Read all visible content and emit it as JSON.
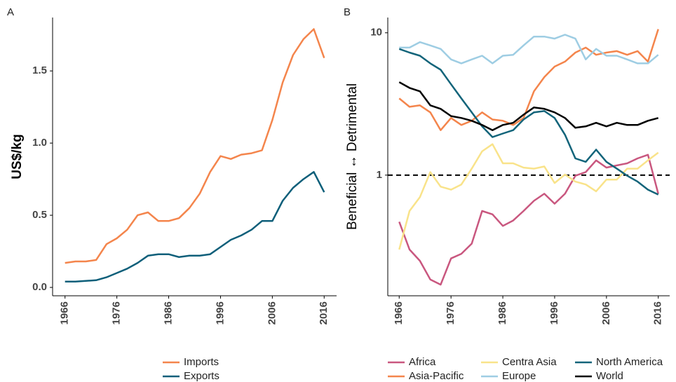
{
  "chart_data": [
    {
      "type": "line",
      "label": "A",
      "y_label": "US$/kg",
      "x": [
        1966,
        1968,
        1970,
        1972,
        1974,
        1976,
        1978,
        1980,
        1982,
        1984,
        1986,
        1988,
        1990,
        1992,
        1994,
        1996,
        1998,
        2000,
        2002,
        2004,
        2006,
        2008,
        2010,
        2012,
        2014,
        2016
      ],
      "series": [
        {
          "name": "Imports",
          "color": "#f4854c",
          "values": [
            0.17,
            0.18,
            0.18,
            0.19,
            0.3,
            0.34,
            0.4,
            0.5,
            0.52,
            0.46,
            0.46,
            0.48,
            0.55,
            0.65,
            0.8,
            0.91,
            0.89,
            0.92,
            0.93,
            0.95,
            1.16,
            1.42,
            1.61,
            1.72,
            1.79,
            1.59
          ]
        },
        {
          "name": "Exports",
          "color": "#0e5f7a",
          "values": [
            0.04,
            0.04,
            0.045,
            0.05,
            0.07,
            0.1,
            0.13,
            0.17,
            0.22,
            0.23,
            0.23,
            0.21,
            0.22,
            0.22,
            0.23,
            0.28,
            0.33,
            0.36,
            0.4,
            0.46,
            0.46,
            0.6,
            0.69,
            0.75,
            0.8,
            0.66
          ]
        }
      ],
      "xlim": [
        1963.6,
        2018.4
      ],
      "xticks": [
        1966,
        1976,
        1986,
        1996,
        2006,
        2016
      ],
      "ylim": [
        -0.058,
        1.87
      ],
      "yticks": [
        {
          "value": 0,
          "label": "0.0"
        },
        0.5,
        {
          "value": 1,
          "label": "1.0"
        },
        1.5
      ]
    },
    {
      "type": "line",
      "label": "B",
      "y_label": "Beneficial ↔ Detrimental",
      "log_y": true,
      "hline": 1,
      "x": [
        1966,
        1968,
        1970,
        1972,
        1974,
        1976,
        1978,
        1980,
        1982,
        1984,
        1986,
        1988,
        1990,
        1992,
        1994,
        1996,
        1998,
        2000,
        2002,
        2004,
        2006,
        2008,
        2010,
        2012,
        2014,
        2016
      ],
      "series": [
        {
          "name": "Africa",
          "color": "#c9577f",
          "values": [
            0.47,
            0.3,
            0.25,
            0.185,
            0.17,
            0.26,
            0.28,
            0.33,
            0.56,
            0.53,
            0.44,
            0.48,
            0.56,
            0.66,
            0.74,
            0.63,
            0.74,
            0.99,
            1.05,
            1.27,
            1.13,
            1.17,
            1.21,
            1.31,
            1.39,
            0.74
          ]
        },
        {
          "name": "Asia-Pacific",
          "color": "#f4854c",
          "values": [
            3.46,
            3.02,
            3.09,
            2.76,
            2.07,
            2.52,
            2.25,
            2.41,
            2.76,
            2.46,
            2.41,
            2.25,
            2.52,
            3.88,
            4.88,
            5.79,
            6.27,
            7.26,
            7.87,
            7.0,
            7.26,
            7.44,
            7.0,
            7.44,
            6.27,
            10.6
          ]
        },
        {
          "name": "Centra Asia",
          "color": "#f9e38a",
          "values": [
            0.3,
            0.56,
            0.7,
            1.05,
            0.83,
            0.79,
            0.86,
            1.11,
            1.47,
            1.65,
            1.21,
            1.21,
            1.13,
            1.11,
            1.15,
            0.88,
            1.01,
            0.9,
            0.86,
            0.77,
            0.93,
            0.93,
            1.11,
            1.11,
            1.27,
            1.44
          ]
        },
        {
          "name": "Europe",
          "color": "#9ecde3",
          "values": [
            7.87,
            7.87,
            8.6,
            8.15,
            7.7,
            6.5,
            6.1,
            6.5,
            6.9,
            6.1,
            6.9,
            7.0,
            8.15,
            9.4,
            9.4,
            9.1,
            9.7,
            9.1,
            6.5,
            7.7,
            6.9,
            6.9,
            6.5,
            6.1,
            6.1,
            7.0
          ]
        },
        {
          "name": "North America",
          "color": "#12647a",
          "values": [
            7.7,
            7.26,
            6.9,
            6.1,
            5.5,
            4.35,
            3.46,
            2.76,
            2.2,
            1.85,
            1.96,
            2.07,
            2.46,
            2.76,
            2.82,
            2.52,
            1.92,
            1.31,
            1.24,
            1.51,
            1.24,
            1.11,
            0.99,
            0.9,
            0.79,
            0.73
          ]
        },
        {
          "name": "World",
          "color": "#000000",
          "values": [
            4.5,
            4.1,
            3.88,
            3.09,
            2.92,
            2.6,
            2.52,
            2.41,
            2.25,
            2.07,
            2.25,
            2.33,
            2.66,
            2.99,
            2.92,
            2.76,
            2.52,
            2.15,
            2.2,
            2.33,
            2.2,
            2.33,
            2.25,
            2.25,
            2.41,
            2.52
          ]
        }
      ],
      "xlim": [
        1963.8,
        2018.2
      ],
      "xticks": [
        1966,
        1976,
        1986,
        1996,
        2006,
        2016
      ],
      "ylim": [
        0.142,
        12.8
      ],
      "yticks": [
        1,
        10
      ]
    }
  ]
}
